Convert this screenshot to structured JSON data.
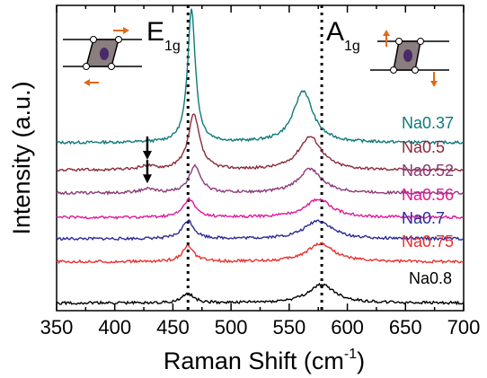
{
  "chart_data": {
    "type": "line",
    "xlabel_main": "Raman Shift (cm",
    "xlabel_sup": "-1",
    "xlabel_close": ")",
    "ylabel": "Intensity (a.u.)",
    "xlim": [
      350,
      700
    ],
    "ylim": [
      0,
      100
    ],
    "xticks": [
      350,
      400,
      450,
      500,
      550,
      600,
      650,
      700
    ],
    "grid": false,
    "reference_lines": [
      {
        "x": 463,
        "main": "E",
        "sub": "1g"
      },
      {
        "x": 578,
        "main": "A",
        "sub": "1g"
      }
    ],
    "arrows_x": [
      428,
      428
    ],
    "series": [
      {
        "name": "Na0.37",
        "color": "#0f7a7a",
        "baseline": 55.0,
        "e1g": [
          466,
          4,
          44
        ],
        "a1g": [
          562,
          10,
          17
        ],
        "arrow": null
      },
      {
        "name": "Na0.5",
        "color": "#8b2b3a",
        "baseline": 46.0,
        "e1g": [
          468,
          6,
          18
        ],
        "a1g": [
          568,
          12,
          11
        ],
        "arrow": 428
      },
      {
        "name": "Na0.52",
        "color": "#8b3a7a",
        "baseline": 38.5,
        "e1g": [
          469,
          6,
          9
        ],
        "a1g": [
          568,
          12,
          8
        ],
        "arrow": 428
      },
      {
        "name": "Na0.56",
        "color": "#e0189a",
        "baseline": 30.5,
        "e1g": [
          464,
          6,
          6
        ],
        "a1g": [
          575,
          14,
          6
        ],
        "arrow": null
      },
      {
        "name": "Na0.7",
        "color": "#2a2a9a",
        "baseline": 23.5,
        "e1g": [
          463,
          6,
          6
        ],
        "a1g": [
          575,
          14,
          6
        ],
        "arrow": null
      },
      {
        "name": "Na0.75",
        "color": "#e83030",
        "baseline": 16.0,
        "e1g": [
          463,
          6,
          5
        ],
        "a1g": [
          577,
          14,
          6
        ],
        "arrow": null
      },
      {
        "name": "Na0.8",
        "color": "#000000",
        "baseline": 2.5,
        "e1g": [
          463,
          6,
          3
        ],
        "a1g": [
          578,
          14,
          6
        ],
        "arrow": null
      }
    ]
  }
}
